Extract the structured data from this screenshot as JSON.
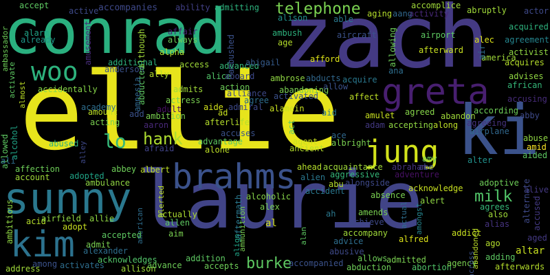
{
  "background": "#000000",
  "words": [
    {
      "text": "ellie",
      "color": "#e7e41c"
    },
    {
      "text": "zach",
      "color": "#443a83"
    },
    {
      "text": "conrad",
      "color": "#2ab07f"
    },
    {
      "text": "laurie",
      "color": "#414487"
    },
    {
      "text": "ki",
      "color": "#3b528b"
    },
    {
      "text": "sunny",
      "color": "#2a788e"
    },
    {
      "text": "greta",
      "color": "#481f70"
    },
    {
      "text": "brahms",
      "color": "#3b528b"
    },
    {
      "text": "kim",
      "color": "#2c728e"
    },
    {
      "text": "jung",
      "color": "#d2e21b"
    },
    {
      "text": "woo",
      "color": "#2db27d"
    },
    {
      "text": "telephone",
      "color": "#7ad151"
    },
    {
      "text": "hank",
      "color": "#addc30"
    },
    {
      "text": "lo",
      "color": "#35b779"
    },
    {
      "text": "burke",
      "color": "#5ec962"
    },
    {
      "text": "milk",
      "color": "#52c569"
    },
    {
      "text": "accomplice",
      "color": "#a0da39"
    },
    {
      "text": "ambassador",
      "color": "#6ece58"
    },
    {
      "text": "accept",
      "color": "#5ec962"
    },
    {
      "text": "active",
      "color": "#3e4a89"
    },
    {
      "text": "accompanies",
      "color": "#3e4989"
    },
    {
      "text": "ability",
      "color": "#424086"
    },
    {
      "text": "admitting",
      "color": "#2db27d"
    },
    {
      "text": "amusement",
      "color": "#472c7a"
    },
    {
      "text": "alarm",
      "color": "#20a486"
    },
    {
      "text": "already",
      "color": "#1f988b"
    },
    {
      "text": "affair",
      "color": "#482475"
    },
    {
      "text": "always",
      "color": "#6ece58"
    },
    {
      "text": "although",
      "color": "#a0da39"
    },
    {
      "text": "ambushed",
      "color": "#3b528b"
    },
    {
      "text": "ambush",
      "color": "#2db27d"
    },
    {
      "text": "alison",
      "color": "#21918c"
    },
    {
      "text": "able",
      "color": "#2a788e"
    },
    {
      "text": "aging",
      "color": "#b5de2b"
    },
    {
      "text": "aang",
      "color": "#31688e"
    },
    {
      "text": "activity",
      "color": "#482878"
    },
    {
      "text": "abruptly",
      "color": "#a0da39"
    },
    {
      "text": "actor",
      "color": "#3e4989"
    },
    {
      "text": "acquired",
      "color": "#2db27d"
    },
    {
      "text": "agreement",
      "color": "#25858e"
    },
    {
      "text": "activist",
      "color": "#90d743"
    },
    {
      "text": "acquires",
      "color": "#b5de2b"
    },
    {
      "text": "advises",
      "color": "#90d743"
    },
    {
      "text": "african",
      "color": "#35b779"
    },
    {
      "text": "accusing",
      "color": "#472c7a"
    },
    {
      "text": "abby",
      "color": "#3e4a89"
    },
    {
      "text": "abuse",
      "color": "#90d743"
    },
    {
      "text": "amid",
      "color": "#fde725"
    },
    {
      "text": "aided",
      "color": "#5ec962"
    },
    {
      "text": "alive",
      "color": "#443983"
    },
    {
      "text": "alternate",
      "color": "#3e4989"
    },
    {
      "text": "accused",
      "color": "#443983"
    },
    {
      "text": "altar",
      "color": "#c8e020"
    },
    {
      "text": "adding",
      "color": "#5ec962"
    },
    {
      "text": "afterwards",
      "color": "#b5de2b"
    },
    {
      "text": "aircraft",
      "color": "#3b528b"
    },
    {
      "text": "allowing",
      "color": "#6ece58"
    },
    {
      "text": "airport",
      "color": "#5ec962"
    },
    {
      "text": "alec",
      "color": "#dde318"
    },
    {
      "text": "america",
      "color": "#a0da39"
    },
    {
      "text": "air",
      "color": "#2e6e8e"
    },
    {
      "text": "afterward",
      "color": "#c8e020"
    },
    {
      "text": "age",
      "color": "#b5de2b"
    },
    {
      "text": "alpha",
      "color": "#addc30"
    },
    {
      "text": "additional",
      "color": "#2db27d"
    },
    {
      "text": "anderson",
      "color": "#3b528b"
    },
    {
      "text": "abducted",
      "color": "#5ec962"
    },
    {
      "text": "amnesia",
      "color": "#31688e"
    },
    {
      "text": "ally",
      "color": "#b5de2b"
    },
    {
      "text": "access",
      "color": "#a0da39"
    },
    {
      "text": "advanced",
      "color": "#35b779"
    },
    {
      "text": "abigail",
      "color": "#365c8d"
    },
    {
      "text": "afford",
      "color": "#dde318"
    },
    {
      "text": "abducts",
      "color": "#31688e"
    },
    {
      "text": "acquire",
      "color": "#2a788e"
    },
    {
      "text": "ana",
      "color": "#2e6e8e"
    },
    {
      "text": "activate",
      "color": "#5ec962"
    },
    {
      "text": "almost",
      "color": "#bddf26"
    },
    {
      "text": "accidentally",
      "color": "#86d549"
    },
    {
      "text": "admits",
      "color": "#a0da39"
    },
    {
      "text": "alice",
      "color": "#52c569"
    },
    {
      "text": "aboard",
      "color": "#3e4a89"
    },
    {
      "text": "action",
      "color": "#6ece58"
    },
    {
      "text": "alliance",
      "color": "#3e4989"
    },
    {
      "text": "ambrose",
      "color": "#90d743"
    },
    {
      "text": "abandoning",
      "color": "#7ad151"
    },
    {
      "text": "allow",
      "color": "#3b528b"
    },
    {
      "text": "activated",
      "color": "#3b528b"
    },
    {
      "text": "affect",
      "color": "#bddf26"
    },
    {
      "text": "agree",
      "color": "#2e6e8e"
    },
    {
      "text": "alamein",
      "color": "#c8e020"
    },
    {
      "text": "academy",
      "color": "#2e6e8e"
    },
    {
      "text": "amount",
      "color": "#bddf26"
    },
    {
      "text": "actress",
      "color": "#7ad151"
    },
    {
      "text": "admiral",
      "color": "#3e4989"
    },
    {
      "text": "aide",
      "color": "#d2e21b"
    },
    {
      "text": "add",
      "color": "#3b528b"
    },
    {
      "text": "ambition",
      "color": "#7ad151"
    },
    {
      "text": "adult",
      "color": "#471063"
    },
    {
      "text": "ad",
      "color": "#c8e020"
    },
    {
      "text": "aid",
      "color": "#2a788e"
    },
    {
      "text": "amulet",
      "color": "#c8e020"
    },
    {
      "text": "agreed",
      "color": "#86d549"
    },
    {
      "text": "abandon",
      "color": "#a0da39"
    },
    {
      "text": "according",
      "color": "#6ece58"
    },
    {
      "text": "acting",
      "color": "#7ad151"
    },
    {
      "text": "aaron",
      "color": "#482878"
    },
    {
      "text": "afterlife",
      "color": "#b5de2b"
    },
    {
      "text": "accuses",
      "color": "#3b528b"
    },
    {
      "text": "act",
      "color": "#5ec962"
    },
    {
      "text": "adam",
      "color": "#443983"
    },
    {
      "text": "agreeing",
      "color": "#46337f"
    },
    {
      "text": "accepting",
      "color": "#90d743"
    },
    {
      "text": "along",
      "color": "#bddf26"
    },
    {
      "text": "airplane",
      "color": "#31688e"
    },
    {
      "text": "ace",
      "color": "#31688e"
    },
    {
      "text": "allowed",
      "color": "#5ec962"
    },
    {
      "text": "alcohol",
      "color": "#20a486"
    },
    {
      "text": "abused",
      "color": "#2db27d"
    },
    {
      "text": "afraid",
      "color": "#414487"
    },
    {
      "text": "ali",
      "color": "#2e6e8e"
    },
    {
      "text": "alley",
      "color": "#3e4989"
    },
    {
      "text": "advantage",
      "color": "#5ec962"
    },
    {
      "text": "alone",
      "color": "#bddf26"
    },
    {
      "text": "agent",
      "color": "#c8e020"
    },
    {
      "text": "ancient",
      "color": "#b5de2b"
    },
    {
      "text": "albright",
      "color": "#7ad151"
    },
    {
      "text": "abe",
      "color": "#3b528b"
    },
    {
      "text": "amy",
      "color": "#6ece58"
    },
    {
      "text": "alter",
      "color": "#21918c"
    },
    {
      "text": "affection",
      "color": "#6ece58"
    },
    {
      "text": "abbey",
      "color": "#6ece58"
    },
    {
      "text": "albert",
      "color": "#bddf26"
    },
    {
      "text": "ahead",
      "color": "#b5de2b"
    },
    {
      "text": "acquaintance",
      "color": "#a0da39"
    },
    {
      "text": "abraham",
      "color": "#46337f"
    },
    {
      "text": "account",
      "color": "#a0da39"
    },
    {
      "text": "adopted",
      "color": "#20a486"
    },
    {
      "text": "aggressive",
      "color": "#35b779"
    },
    {
      "text": "adventure",
      "color": "#471063"
    },
    {
      "text": "adoptive",
      "color": "#6ece58"
    },
    {
      "text": "ambulance",
      "color": "#90d743"
    },
    {
      "text": "alien",
      "color": "#2a788e"
    },
    {
      "text": "abu",
      "color": "#b5de2b"
    },
    {
      "text": "alongside",
      "color": "#3e4989"
    },
    {
      "text": "accident",
      "color": "#2a788e"
    },
    {
      "text": "acknowledge",
      "color": "#c8e020"
    },
    {
      "text": "alerted",
      "color": "#bddf26"
    },
    {
      "text": "aftermath",
      "color": "#2a788e"
    },
    {
      "text": "alcoholic",
      "color": "#86d549"
    },
    {
      "text": "absence",
      "color": "#7ad151"
    },
    {
      "text": "alert",
      "color": "#90d743"
    },
    {
      "text": "ambitious",
      "color": "#90d743"
    },
    {
      "text": "acid",
      "color": "#b5de2b"
    },
    {
      "text": "airfield",
      "color": "#90d743"
    },
    {
      "text": "allie",
      "color": "#90d743"
    },
    {
      "text": "adopt",
      "color": "#c8e020"
    },
    {
      "text": "american",
      "color": "#2e6e8e"
    },
    {
      "text": "actually",
      "color": "#addc30"
    },
    {
      "text": "allen",
      "color": "#5ec962"
    },
    {
      "text": "ammunition",
      "color": "#7ad151"
    },
    {
      "text": "alex",
      "color": "#7ad151"
    },
    {
      "text": "al",
      "color": "#d2e21b"
    },
    {
      "text": "ah",
      "color": "#2a788e"
    },
    {
      "text": "amends",
      "color": "#7ad151"
    },
    {
      "text": "achieve",
      "color": "#3e4989"
    },
    {
      "text": "actual",
      "color": "#2e6e8e"
    },
    {
      "text": "amongst",
      "color": "#25858e"
    },
    {
      "text": "agrees",
      "color": "#35b779"
    },
    {
      "text": "also",
      "color": "#a0da39"
    },
    {
      "text": "alias",
      "color": "#46337f"
    },
    {
      "text": "accepted",
      "color": "#5ec962"
    },
    {
      "text": "aim",
      "color": "#7ad151"
    },
    {
      "text": "align",
      "color": "#20a486"
    },
    {
      "text": "alan",
      "color": "#5ec962"
    },
    {
      "text": "accompany",
      "color": "#a0da39"
    },
    {
      "text": "alfred",
      "color": "#dde318"
    },
    {
      "text": "addict",
      "color": "#c8e020"
    },
    {
      "text": "abandoned",
      "color": "#bddf26"
    },
    {
      "text": "aged",
      "color": "#443983"
    },
    {
      "text": "ago",
      "color": "#b5de2b"
    },
    {
      "text": "admit",
      "color": "#7ad151"
    },
    {
      "text": "alexander",
      "color": "#2e6e8e"
    },
    {
      "text": "advice",
      "color": "#2e6e8e"
    },
    {
      "text": "abusive",
      "color": "#3e4989"
    },
    {
      "text": "among",
      "color": "#3b528b"
    },
    {
      "text": "activates",
      "color": "#2e6e8e"
    },
    {
      "text": "acknowledges",
      "color": "#52c569"
    },
    {
      "text": "addition",
      "color": "#5ec962"
    },
    {
      "text": "allows",
      "color": "#6ece58"
    },
    {
      "text": "admitted",
      "color": "#7ad151"
    },
    {
      "text": "address",
      "color": "#a0da39"
    },
    {
      "text": "allison",
      "color": "#a0da39"
    },
    {
      "text": "advance",
      "color": "#6ece58"
    },
    {
      "text": "accepts",
      "color": "#6ece58"
    },
    {
      "text": "accompanied",
      "color": "#3b528b"
    },
    {
      "text": "abduction",
      "color": "#6ece58"
    },
    {
      "text": "abortion",
      "color": "#52c569"
    },
    {
      "text": "agency",
      "color": "#7ad151"
    },
    {
      "text": "across",
      "color": "#3b528b"
    }
  ]
}
